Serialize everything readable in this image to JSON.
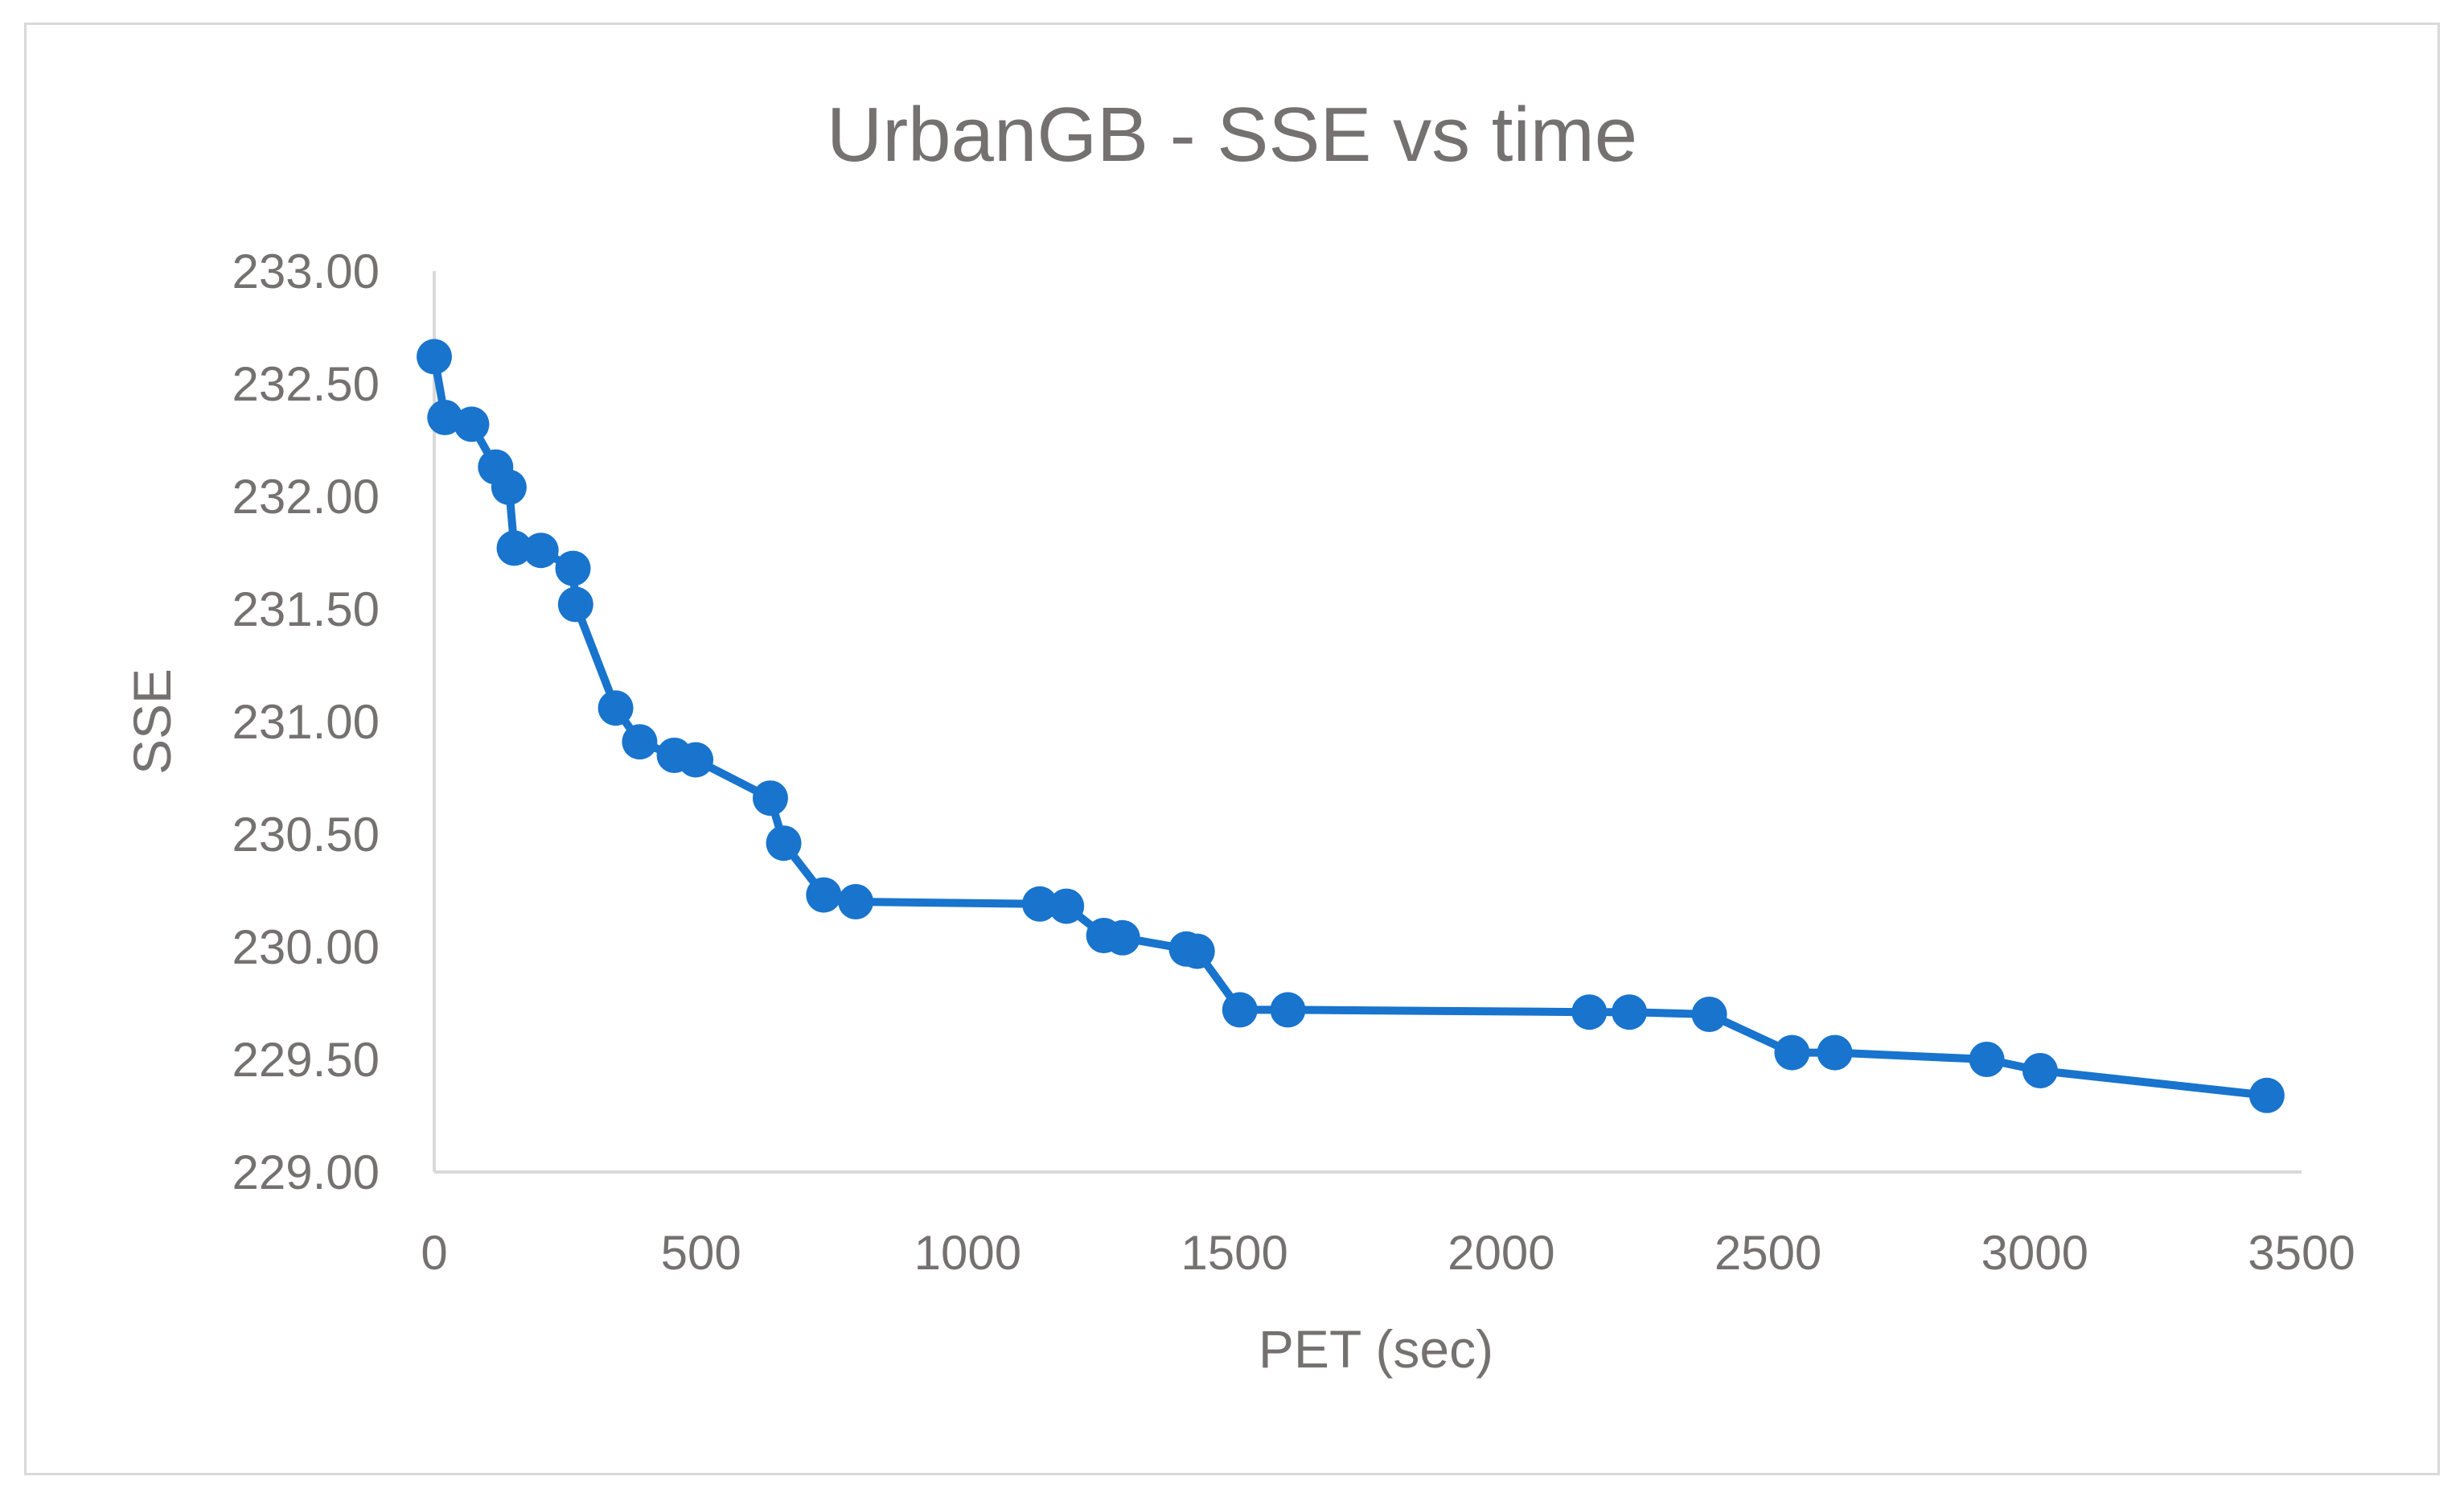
{
  "chart_data": {
    "type": "scatter",
    "title": "UrbanGB - SSE vs time",
    "xlabel": "PET (sec)",
    "ylabel": "SSE",
    "xlim": [
      0,
      3500
    ],
    "ylim": [
      229.0,
      233.0
    ],
    "x_ticks": [
      "0",
      "500",
      "1000",
      "1500",
      "2000",
      "2500",
      "3000",
      "3500"
    ],
    "y_ticks": [
      "229.00",
      "229.50",
      "230.00",
      "230.50",
      "231.00",
      "231.50",
      "232.00",
      "232.50",
      "233.00"
    ],
    "grid": false,
    "legend": false,
    "series_color": "#1874CD",
    "series": [
      {
        "name": "SSE",
        "x": [
          0,
          20,
          70,
          115,
          140,
          150,
          200,
          260,
          265,
          340,
          385,
          450,
          490,
          630,
          655,
          730,
          790,
          1135,
          1185,
          1255,
          1290,
          1410,
          1430,
          1510,
          1600,
          2165,
          2240,
          2390,
          2545,
          2625,
          2910,
          3010,
          3435
        ],
        "y": [
          232.62,
          232.35,
          232.32,
          232.13,
          232.04,
          231.77,
          231.76,
          231.68,
          231.52,
          231.06,
          230.91,
          230.85,
          230.83,
          230.66,
          230.46,
          230.23,
          230.2,
          230.19,
          230.18,
          230.05,
          230.04,
          229.99,
          229.98,
          229.72,
          229.72,
          229.71,
          229.71,
          229.7,
          229.53,
          229.53,
          229.5,
          229.45,
          229.34
        ]
      }
    ]
  }
}
